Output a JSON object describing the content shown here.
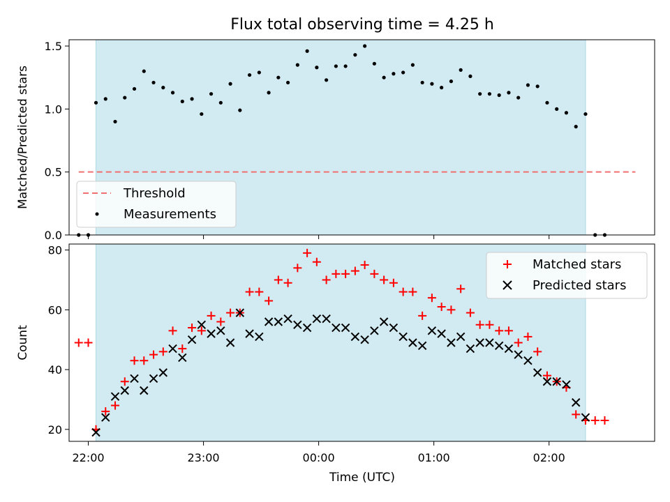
{
  "chart_data": [
    {
      "type": "scatter",
      "title": "Flux total observing time = 4.25 h",
      "ylabel": "Matched/Predicted stars",
      "xlabel": "",
      "xlim": [
        "21:50",
        "02:55"
      ],
      "ylim": [
        0,
        1.55
      ],
      "yticks": [
        0.0,
        0.5,
        1.0,
        1.5
      ],
      "ytick_labels": [
        "0.0",
        "0.5",
        "1.0",
        "1.5"
      ],
      "shaded_interval": [
        "22:04",
        "02:19"
      ],
      "shade_color": "#add8e6",
      "threshold": {
        "name": "Threshold",
        "value": 0.5,
        "x_range": [
          "21:55",
          "02:45"
        ],
        "color": "#f07070"
      },
      "legend": {
        "position": "lower-left",
        "entries": [
          "Threshold",
          "Measurements"
        ]
      },
      "series": [
        {
          "name": "Measurements",
          "color": "#000000",
          "marker": "dot",
          "x": [
            "21:55",
            "22:00",
            "22:04",
            "22:09",
            "22:14",
            "22:19",
            "22:24",
            "22:29",
            "22:34",
            "22:39",
            "22:44",
            "22:49",
            "22:54",
            "22:59",
            "23:04",
            "23:09",
            "23:14",
            "23:19",
            "23:24",
            "23:29",
            "23:34",
            "23:39",
            "23:44",
            "23:49",
            "23:54",
            "23:59",
            "00:04",
            "00:09",
            "00:14",
            "00:19",
            "00:24",
            "00:29",
            "00:34",
            "00:39",
            "00:44",
            "00:49",
            "00:54",
            "00:59",
            "01:04",
            "01:09",
            "01:14",
            "01:19",
            "01:24",
            "01:29",
            "01:34",
            "01:39",
            "01:44",
            "01:49",
            "01:54",
            "01:59",
            "02:04",
            "02:09",
            "02:14",
            "02:19",
            "02:24",
            "02:29"
          ],
          "y": [
            0,
            0,
            1.05,
            1.08,
            0.9,
            1.09,
            1.16,
            1.3,
            1.21,
            1.17,
            1.13,
            1.06,
            1.08,
            0.96,
            1.12,
            1.05,
            1.2,
            0.99,
            1.27,
            1.29,
            1.13,
            1.25,
            1.21,
            1.35,
            1.46,
            1.33,
            1.23,
            1.34,
            1.34,
            1.43,
            1.5,
            1.36,
            1.25,
            1.28,
            1.29,
            1.35,
            1.21,
            1.2,
            1.17,
            1.22,
            1.31,
            1.26,
            1.12,
            1.12,
            1.11,
            1.13,
            1.09,
            1.19,
            1.18,
            1.05,
            1.0,
            0.97,
            0.86,
            0.96,
            0,
            0
          ]
        }
      ]
    },
    {
      "type": "scatter",
      "title": "",
      "ylabel": "Count",
      "xlabel": "Time (UTC)",
      "xlim": [
        "21:50",
        "02:55"
      ],
      "ylim": [
        16,
        82
      ],
      "yticks": [
        20,
        40,
        60,
        80
      ],
      "ytick_labels": [
        "20",
        "40",
        "60",
        "80"
      ],
      "xticks": [
        "22:00",
        "23:00",
        "00:00",
        "01:00",
        "02:00"
      ],
      "xtick_labels": [
        "22:00",
        "23:00",
        "00:00",
        "01:00",
        "02:00"
      ],
      "shaded_interval": [
        "22:04",
        "02:19"
      ],
      "legend": {
        "position": "top-right",
        "entries": [
          "Matched stars",
          "Predicted stars"
        ]
      },
      "series": [
        {
          "name": "Matched stars",
          "color": "#ff0000",
          "marker": "plus",
          "x": [
            "21:55",
            "22:00",
            "22:04",
            "22:09",
            "22:14",
            "22:19",
            "22:24",
            "22:29",
            "22:34",
            "22:39",
            "22:44",
            "22:49",
            "22:54",
            "22:59",
            "23:04",
            "23:09",
            "23:14",
            "23:19",
            "23:24",
            "23:29",
            "23:34",
            "23:39",
            "23:44",
            "23:49",
            "23:54",
            "23:59",
            "00:04",
            "00:09",
            "00:14",
            "00:19",
            "00:24",
            "00:29",
            "00:34",
            "00:39",
            "00:44",
            "00:49",
            "00:54",
            "00:59",
            "01:04",
            "01:09",
            "01:14",
            "01:19",
            "01:24",
            "01:29",
            "01:34",
            "01:39",
            "01:44",
            "01:49",
            "01:54",
            "01:59",
            "02:04",
            "02:09",
            "02:14",
            "02:19",
            "02:24",
            "02:29"
          ],
          "y": [
            49,
            49,
            20,
            26,
            28,
            36,
            43,
            43,
            45,
            46,
            53,
            47,
            54,
            53,
            58,
            56,
            59,
            59,
            66,
            66,
            63,
            70,
            69,
            74,
            79,
            76,
            70,
            72,
            72,
            73,
            75,
            72,
            70,
            69,
            66,
            66,
            58,
            64,
            61,
            60,
            67,
            59,
            55,
            55,
            53,
            53,
            49,
            51,
            46,
            38,
            36,
            34,
            25,
            23,
            23,
            23
          ]
        },
        {
          "name": "Predicted stars",
          "color": "#000000",
          "marker": "x",
          "x": [
            "22:04",
            "22:09",
            "22:14",
            "22:19",
            "22:24",
            "22:29",
            "22:34",
            "22:39",
            "22:44",
            "22:49",
            "22:54",
            "22:59",
            "23:04",
            "23:09",
            "23:14",
            "23:19",
            "23:24",
            "23:29",
            "23:34",
            "23:39",
            "23:44",
            "23:49",
            "23:54",
            "23:59",
            "00:04",
            "00:09",
            "00:14",
            "00:19",
            "00:24",
            "00:29",
            "00:34",
            "00:39",
            "00:44",
            "00:49",
            "00:54",
            "00:59",
            "01:04",
            "01:09",
            "01:14",
            "01:19",
            "01:24",
            "01:29",
            "01:34",
            "01:39",
            "01:44",
            "01:49",
            "01:54",
            "01:59",
            "02:04",
            "02:09",
            "02:14",
            "02:19"
          ],
          "y": [
            19,
            24,
            31,
            33,
            37,
            33,
            37,
            39,
            47,
            44,
            50,
            55,
            52,
            53,
            49,
            59,
            52,
            51,
            56,
            56,
            57,
            55,
            54,
            57,
            57,
            54,
            54,
            51,
            50,
            53,
            56,
            54,
            51,
            49,
            48,
            53,
            52,
            49,
            51,
            47,
            49,
            49,
            48,
            47,
            45,
            43,
            39,
            36,
            36,
            35,
            29,
            24
          ]
        }
      ]
    }
  ]
}
